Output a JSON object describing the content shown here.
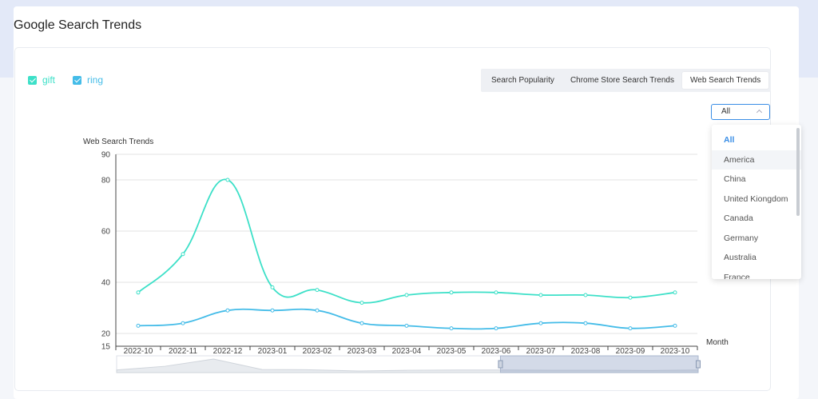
{
  "title": "Google Search Trends",
  "legend": [
    {
      "label": "gift",
      "color": "#3de0c8"
    },
    {
      "label": "ring",
      "color": "#44bce8"
    }
  ],
  "tabs": [
    {
      "label": "Search Popularity",
      "active": false
    },
    {
      "label": "Chrome Store Search Trends",
      "active": false
    },
    {
      "label": "Web Search Trends",
      "active": true
    }
  ],
  "region_select": {
    "value": "All",
    "icon": "chevron-up-icon"
  },
  "region_options": [
    "All",
    "America",
    "China",
    "United Kiongdom",
    "Canada",
    "Germany",
    "Australia",
    "France"
  ],
  "chart_data": {
    "type": "line",
    "title": "",
    "ylabel": "Web Search Trends",
    "xlabel": "Month",
    "yticks": [
      15,
      20,
      40,
      60,
      80,
      90
    ],
    "ylim": [
      15,
      90
    ],
    "categories": [
      "2022-10",
      "2022-11",
      "2022-12",
      "2023-01",
      "2023-02",
      "2023-03",
      "2023-04",
      "2023-05",
      "2023-06",
      "2023-07",
      "2023-08",
      "2023-09",
      "2023-10"
    ],
    "series": [
      {
        "name": "gift",
        "color": "#3de0c8",
        "values": [
          36,
          51,
          80,
          38,
          37,
          32,
          35,
          36,
          36,
          35,
          35,
          34,
          36
        ]
      },
      {
        "name": "ring",
        "color": "#44bce8",
        "values": [
          23,
          24,
          29,
          29,
          29,
          24,
          23,
          22,
          22,
          24,
          24,
          22,
          23
        ]
      }
    ],
    "grid": true,
    "legend": "top-left",
    "data_zoom": {
      "start": 0.66,
      "end": 1.0
    }
  }
}
